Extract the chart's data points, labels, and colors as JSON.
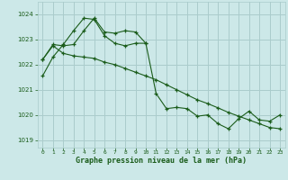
{
  "bg_color": "#cce8e8",
  "grid_color": "#aacccc",
  "line_color": "#1a5c1a",
  "marker_color": "#1a5c1a",
  "xlabel": "Graphe pression niveau de la mer (hPa)",
  "xlabel_color": "#1a5c1a",
  "tick_color": "#1a5c1a",
  "xlim": [
    -0.5,
    23.5
  ],
  "ylim": [
    1018.7,
    1024.5
  ],
  "yticks": [
    1019,
    1020,
    1021,
    1022,
    1023,
    1024
  ],
  "xticks": [
    0,
    1,
    2,
    3,
    4,
    5,
    6,
    7,
    8,
    9,
    10,
    11,
    12,
    13,
    14,
    15,
    16,
    17,
    18,
    19,
    20,
    21,
    22,
    23
  ],
  "series": [
    {
      "x": [
        0,
        1,
        2,
        3,
        4,
        5,
        6,
        7,
        8,
        9,
        10,
        11,
        12,
        13,
        14,
        15,
        16,
        17,
        18,
        19,
        20,
        21,
        22,
        23
      ],
      "y": [
        1021.55,
        1022.3,
        1022.8,
        1023.35,
        1023.85,
        1023.8,
        1023.15,
        1022.85,
        1022.75,
        1022.85,
        1022.85,
        1020.85,
        1020.25,
        1020.3,
        1020.25,
        1019.95,
        1020.0,
        1019.65,
        1019.45,
        1019.85,
        1020.15,
        1019.8,
        1019.75,
        1020.0
      ]
    },
    {
      "x": [
        0,
        1,
        2,
        3,
        4,
        5,
        6,
        7,
        8,
        9,
        10
      ],
      "y": [
        1022.2,
        1022.8,
        1022.75,
        1022.8,
        1023.35,
        1023.85,
        1023.3,
        1023.25,
        1023.35,
        1023.3,
        1022.85
      ]
    },
    {
      "x": [
        0,
        1,
        2,
        3,
        4,
        5,
        6,
        7,
        8,
        9,
        10,
        11,
        12,
        13,
        14,
        15,
        16,
        17,
        18,
        19,
        20,
        21,
        22,
        23
      ],
      "y": [
        1022.2,
        1022.75,
        1022.45,
        1022.35,
        1022.3,
        1022.25,
        1022.1,
        1022.0,
        1021.85,
        1021.7,
        1021.55,
        1021.4,
        1021.2,
        1021.0,
        1020.8,
        1020.6,
        1020.45,
        1020.28,
        1020.1,
        1019.95,
        1019.8,
        1019.65,
        1019.5,
        1019.45
      ]
    }
  ]
}
